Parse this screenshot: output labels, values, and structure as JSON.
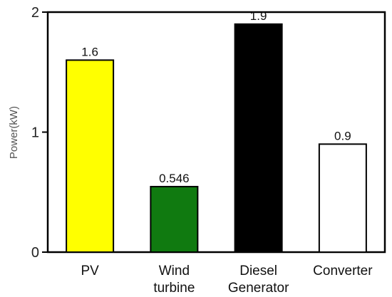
{
  "chart_data": {
    "type": "bar",
    "title": "",
    "xlabel": "",
    "ylabel": "Power(kW)",
    "ylim": [
      0,
      2
    ],
    "yticks": [
      "0",
      "1",
      "2"
    ],
    "grid": false,
    "legend": "none",
    "categories": [
      [
        "PV"
      ],
      [
        "Wind",
        "turbine"
      ],
      [
        "Diesel",
        "Generator"
      ],
      [
        "Converter"
      ]
    ],
    "values": [
      1.6,
      0.546,
      1.9,
      0.9
    ],
    "value_labels": [
      "1.6",
      "0.546",
      "1.9",
      "0.9"
    ],
    "colors": [
      "#ffff00",
      "#107a10",
      "#000000",
      "#ffffff"
    ]
  }
}
